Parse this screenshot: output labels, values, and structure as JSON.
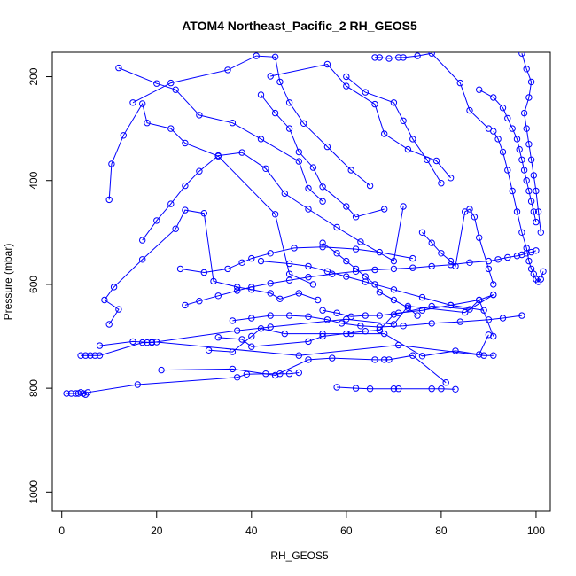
{
  "chart_data": {
    "type": "line",
    "title": "ATOM4 Northeast_Pacific_2 RH_GEOS5",
    "xlabel": "RH_GEOS5",
    "ylabel": "Pressure (mbar)",
    "xlim": [
      -2,
      103
    ],
    "ylim": [
      1037,
      153
    ],
    "y_reversed": true,
    "grid": false,
    "xticks": [
      0,
      20,
      40,
      60,
      80,
      100
    ],
    "yticks": [
      200,
      400,
      600,
      800,
      1000
    ],
    "colors": {
      "series": "#0000ff"
    },
    "series": [
      {
        "x": [
          1,
          2,
          3,
          3.5,
          4,
          4.5,
          5,
          5.5,
          16,
          37,
          39,
          43,
          46,
          48,
          50
        ],
        "y": [
          810,
          810,
          810,
          810,
          808,
          810,
          812,
          808,
          793,
          779,
          773,
          772,
          772,
          772,
          770
        ]
      },
      {
        "x": [
          4,
          5,
          6,
          7,
          8,
          17,
          18,
          19,
          20,
          50,
          71,
          89,
          91
        ],
        "y": [
          737,
          737,
          737,
          737,
          737,
          712,
          712,
          711,
          711,
          737,
          717,
          737,
          737
        ]
      },
      {
        "x": [
          8,
          15,
          19,
          37,
          44,
          60,
          70,
          73,
          85,
          91
        ],
        "y": [
          718,
          710,
          712,
          689,
          682,
          667,
          677,
          642,
          654,
          620
        ]
      },
      {
        "x": [
          21,
          36,
          45,
          52,
          57,
          66,
          68,
          69,
          74,
          81
        ],
        "y": [
          765,
          763,
          775,
          745,
          742,
          745,
          745,
          745,
          737,
          789
        ]
      },
      {
        "x": [
          58,
          62,
          65,
          70,
          71,
          78,
          80,
          83
        ],
        "y": [
          798,
          800,
          801,
          801,
          801,
          801,
          801,
          802
        ]
      },
      {
        "x": [
          31,
          36,
          40,
          42,
          47,
          55,
          60,
          61,
          68,
          76,
          83,
          88,
          90
        ],
        "y": [
          727,
          730,
          700,
          685,
          695,
          695,
          695,
          695,
          695,
          738,
          728,
          735,
          697
        ]
      },
      {
        "x": [
          33,
          38,
          40,
          52,
          55,
          64,
          67,
          70,
          78,
          86,
          88,
          91
        ],
        "y": [
          702,
          706,
          720,
          710,
          700,
          690,
          688,
          658,
          642,
          648,
          630,
          700
        ]
      },
      {
        "x": [
          10,
          12,
          9,
          11,
          17,
          24,
          26,
          30,
          32,
          37,
          40,
          44,
          46,
          50,
          54
        ],
        "y": [
          677,
          648,
          630,
          605,
          552,
          493,
          457,
          463,
          594,
          605,
          610,
          617,
          628,
          617,
          630
        ]
      },
      {
        "x": [
          10,
          10.5,
          13,
          17,
          18,
          23,
          26,
          33,
          45,
          48,
          53
        ],
        "y": [
          437,
          368,
          313,
          252,
          289,
          300,
          328,
          353,
          465,
          580,
          600
        ]
      },
      {
        "x": [
          12,
          20,
          24,
          29,
          36,
          42,
          50,
          52,
          55
        ],
        "y": [
          183,
          213,
          225,
          274,
          289,
          320,
          363,
          415,
          440
        ]
      },
      {
        "x": [
          17,
          20,
          23,
          26,
          29,
          33,
          38,
          43,
          47,
          52,
          58,
          63,
          70,
          72
        ],
        "y": [
          515,
          477,
          445,
          410,
          382,
          352,
          346,
          377,
          425,
          455,
          490,
          518,
          555,
          450
        ]
      },
      {
        "x": [
          15,
          23,
          35,
          41,
          45,
          46,
          48,
          51,
          56,
          61,
          65
        ],
        "y": [
          250,
          212,
          187,
          160,
          162,
          210,
          250,
          290,
          335,
          380,
          410
        ]
      },
      {
        "x": [
          42,
          45,
          48,
          50,
          53,
          55,
          60,
          62,
          68
        ],
        "y": [
          235,
          270,
          300,
          345,
          375,
          412,
          450,
          470,
          455
        ]
      },
      {
        "x": [
          44,
          56,
          60,
          66,
          68,
          73,
          79,
          82
        ],
        "y": [
          199,
          176,
          218,
          253,
          310,
          340,
          362,
          395
        ]
      },
      {
        "x": [
          66,
          67,
          69,
          71,
          72,
          75,
          78,
          84,
          86,
          90
        ],
        "y": [
          163,
          163,
          165,
          163,
          163,
          160,
          155,
          212,
          265,
          300
        ]
      },
      {
        "x": [
          60,
          64,
          70,
          72,
          74,
          77,
          80
        ],
        "y": [
          200,
          230,
          250,
          285,
          320,
          360,
          405
        ]
      },
      {
        "x": [
          88,
          91,
          93,
          94,
          95,
          96,
          96.5,
          97,
          97.5,
          98,
          98.5,
          99,
          99.5,
          100
        ],
        "y": [
          225,
          240,
          260,
          280,
          300,
          320,
          340,
          360,
          380,
          400,
          420,
          440,
          460,
          480
        ]
      },
      {
        "x": [
          97,
          98,
          99,
          98.5,
          97.5,
          98,
          98.5,
          99,
          99.5,
          100,
          100.5,
          101
        ],
        "y": [
          155,
          185,
          210,
          240,
          270,
          300,
          330,
          360,
          390,
          420,
          460,
          500
        ]
      },
      {
        "x": [
          91,
          92,
          93,
          94,
          95,
          96,
          97,
          98,
          98.5,
          99,
          99.5,
          100,
          100.5,
          101,
          101.5
        ],
        "y": [
          305,
          320,
          345,
          380,
          420,
          460,
          500,
          530,
          555,
          570,
          580,
          590,
          595,
          590,
          575
        ]
      },
      {
        "x": [
          76,
          78,
          80,
          82,
          83,
          85,
          86,
          87,
          88,
          90,
          91
        ],
        "y": [
          500,
          520,
          540,
          555,
          565,
          460,
          455,
          470,
          510,
          570,
          600
        ]
      },
      {
        "x": [
          55,
          58,
          60,
          62,
          64,
          66,
          67,
          70,
          73,
          75
        ],
        "y": [
          520,
          540,
          555,
          570,
          585,
          600,
          615,
          630,
          645,
          660
        ]
      },
      {
        "x": [
          25,
          30,
          35,
          38,
          40,
          44,
          49,
          55,
          62,
          67,
          74
        ],
        "y": [
          570,
          577,
          570,
          558,
          550,
          540,
          530,
          528,
          532,
          538,
          550
        ]
      },
      {
        "x": [
          42,
          48,
          52,
          56,
          60,
          64,
          70,
          76,
          82,
          89
        ],
        "y": [
          555,
          560,
          565,
          575,
          585,
          595,
          610,
          625,
          640,
          650
        ]
      },
      {
        "x": [
          55,
          58,
          61,
          64,
          67,
          71,
          76,
          82,
          88,
          91
        ],
        "y": [
          650,
          655,
          662,
          660,
          660,
          655,
          650,
          640,
          630,
          620
        ]
      },
      {
        "x": [
          36,
          40,
          44,
          48,
          52,
          56,
          59,
          63,
          67,
          72,
          78,
          84,
          90,
          93,
          97
        ],
        "y": [
          670,
          665,
          660,
          660,
          662,
          668,
          675,
          680,
          682,
          680,
          675,
          672,
          668,
          665,
          660
        ]
      },
      {
        "x": [
          26,
          29,
          33,
          37,
          40,
          44,
          48,
          52,
          57,
          62,
          66,
          70,
          74,
          78,
          82,
          86,
          90,
          92,
          94,
          96,
          97,
          98,
          99,
          100
        ],
        "y": [
          640,
          632,
          622,
          612,
          605,
          598,
          592,
          586,
          580,
          575,
          572,
          570,
          568,
          565,
          562,
          558,
          555,
          552,
          548,
          545,
          543,
          540,
          538,
          535
        ]
      }
    ]
  }
}
